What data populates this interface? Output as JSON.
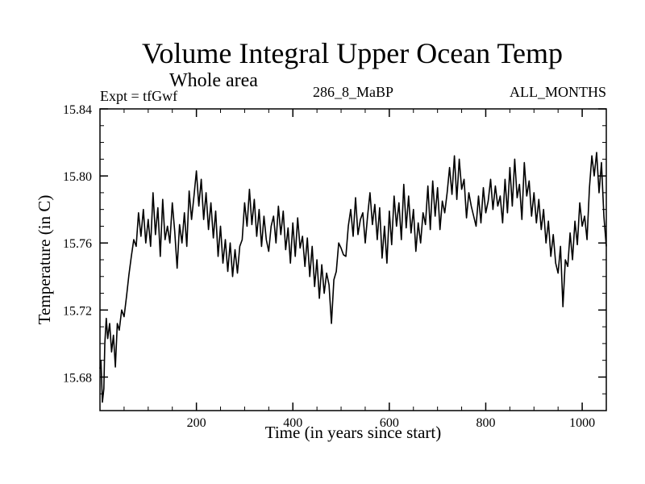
{
  "chart_data": {
    "type": "line",
    "title": "Volume Integral Upper Ocean Temp",
    "subtitle": "Whole area",
    "experiment": "Expt = tfGwf",
    "center_label": "286_8_MaBP",
    "right_label": "ALL_MONTHS",
    "xlabel": "Time (in years since start)",
    "ylabel": "Temperature (in C)",
    "xlim": [
      0,
      1050
    ],
    "ylim": [
      15.66,
      15.84
    ],
    "xticks": [
      200,
      400,
      600,
      800,
      1000
    ],
    "xtick_labels": [
      "200",
      "400",
      "600",
      "800",
      "1000"
    ],
    "yticks": [
      15.68,
      15.72,
      15.76,
      15.8,
      15.84
    ],
    "ytick_labels": [
      "15.68",
      "15.72",
      "15.76",
      "15.80",
      "15.84"
    ],
    "grid": false,
    "series": [
      {
        "name": "Volume Integral Upper Ocean Temp",
        "x": [
          0,
          2,
          5,
          8,
          10,
          13,
          16,
          20,
          24,
          28,
          32,
          36,
          40,
          45,
          50,
          55,
          60,
          65,
          70,
          75,
          80,
          85,
          90,
          95,
          100,
          105,
          110,
          115,
          120,
          125,
          130,
          135,
          140,
          145,
          150,
          155,
          160,
          165,
          170,
          175,
          180,
          185,
          190,
          195,
          200,
          205,
          210,
          215,
          220,
          225,
          230,
          235,
          240,
          245,
          250,
          255,
          260,
          265,
          270,
          275,
          280,
          285,
          290,
          295,
          300,
          305,
          310,
          315,
          320,
          325,
          330,
          335,
          340,
          345,
          350,
          355,
          360,
          365,
          370,
          375,
          380,
          385,
          390,
          395,
          400,
          405,
          410,
          415,
          420,
          425,
          430,
          435,
          440,
          445,
          450,
          455,
          460,
          465,
          470,
          475,
          480,
          485,
          490,
          495,
          500,
          505,
          510,
          515,
          520,
          525,
          530,
          535,
          540,
          545,
          550,
          555,
          560,
          565,
          570,
          575,
          580,
          585,
          590,
          595,
          600,
          605,
          610,
          615,
          620,
          625,
          630,
          635,
          640,
          645,
          650,
          655,
          660,
          665,
          670,
          675,
          680,
          685,
          690,
          695,
          700,
          705,
          710,
          715,
          720,
          725,
          730,
          735,
          740,
          745,
          750,
          755,
          760,
          765,
          770,
          775,
          780,
          785,
          790,
          795,
          800,
          805,
          810,
          815,
          820,
          825,
          830,
          835,
          840,
          845,
          850,
          855,
          860,
          865,
          870,
          875,
          880,
          885,
          890,
          895,
          900,
          905,
          910,
          915,
          920,
          925,
          930,
          935,
          940,
          945,
          950,
          955,
          960,
          965,
          970,
          975,
          980,
          985,
          990,
          995,
          1000,
          1005,
          1010,
          1015,
          1020,
          1025,
          1030,
          1035,
          1040,
          1045,
          1050
        ],
        "values": [
          15.685,
          15.69,
          15.665,
          15.673,
          15.7,
          15.715,
          15.703,
          15.712,
          15.695,
          15.705,
          15.686,
          15.712,
          15.708,
          15.72,
          15.716,
          15.728,
          15.741,
          15.752,
          15.762,
          15.758,
          15.778,
          15.764,
          15.78,
          15.76,
          15.774,
          15.758,
          15.79,
          15.765,
          15.781,
          15.752,
          15.786,
          15.762,
          15.77,
          15.76,
          15.784,
          15.767,
          15.745,
          15.771,
          15.76,
          15.778,
          15.758,
          15.791,
          15.774,
          15.788,
          15.803,
          15.782,
          15.798,
          15.774,
          15.79,
          15.768,
          15.784,
          15.763,
          15.779,
          15.752,
          15.77,
          15.748,
          15.762,
          15.743,
          15.76,
          15.74,
          15.756,
          15.742,
          15.758,
          15.762,
          15.784,
          15.77,
          15.792,
          15.771,
          15.786,
          15.764,
          15.78,
          15.758,
          15.776,
          15.762,
          15.755,
          15.77,
          15.776,
          15.76,
          15.782,
          15.765,
          15.779,
          15.756,
          15.769,
          15.748,
          15.772,
          15.752,
          15.775,
          15.757,
          15.764,
          15.746,
          15.763,
          15.74,
          15.758,
          15.734,
          15.75,
          15.727,
          15.747,
          15.73,
          15.742,
          15.735,
          15.712,
          15.738,
          15.743,
          15.76,
          15.757,
          15.753,
          15.752,
          15.77,
          15.78,
          15.764,
          15.787,
          15.765,
          15.774,
          15.778,
          15.76,
          15.776,
          15.79,
          15.771,
          15.783,
          15.762,
          15.781,
          15.751,
          15.77,
          15.748,
          15.779,
          15.759,
          15.788,
          15.77,
          15.784,
          15.762,
          15.795,
          15.769,
          15.788,
          15.766,
          15.78,
          15.755,
          15.772,
          15.76,
          15.778,
          15.771,
          15.794,
          15.768,
          15.797,
          15.776,
          15.793,
          15.768,
          15.785,
          15.778,
          15.79,
          15.805,
          15.789,
          15.812,
          15.786,
          15.81,
          15.792,
          15.798,
          15.775,
          15.79,
          15.782,
          15.776,
          15.77,
          15.788,
          15.772,
          15.793,
          15.778,
          15.785,
          15.798,
          15.78,
          15.794,
          15.782,
          15.788,
          15.772,
          15.798,
          15.778,
          15.805,
          15.782,
          15.81,
          15.787,
          15.795,
          15.774,
          15.808,
          15.788,
          15.797,
          15.776,
          15.79,
          15.772,
          15.786,
          15.768,
          15.78,
          15.76,
          15.773,
          15.752,
          15.765,
          15.748,
          15.742,
          15.758,
          15.722,
          15.75,
          15.746,
          15.766,
          15.75,
          15.773,
          15.759,
          15.784,
          15.77,
          15.776,
          15.762,
          15.793,
          15.812,
          15.8,
          15.814,
          15.79,
          15.808,
          15.776,
          15.758
        ]
      }
    ]
  }
}
